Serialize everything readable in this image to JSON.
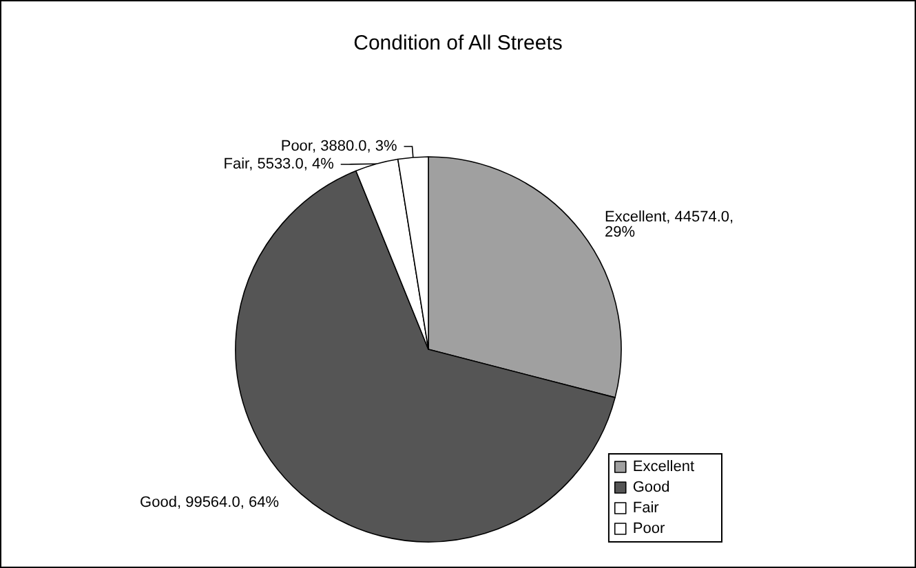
{
  "chart_data": {
    "type": "pie",
    "title": "Condition of All Streets",
    "categories": [
      "Excellent",
      "Good",
      "Fair",
      "Poor"
    ],
    "values": [
      44574,
      99564,
      5533,
      3880
    ],
    "value_labels": [
      "Excellent, 44574.0, 29%",
      "Good, 99564.0, 64%",
      "Fair, 5533.0, 4%",
      "Poor, 3880.0, 3%"
    ],
    "colors": [
      "#a0a0a0",
      "#555555",
      "#ffffff",
      "#ffffff"
    ],
    "legend": "bottom right"
  }
}
